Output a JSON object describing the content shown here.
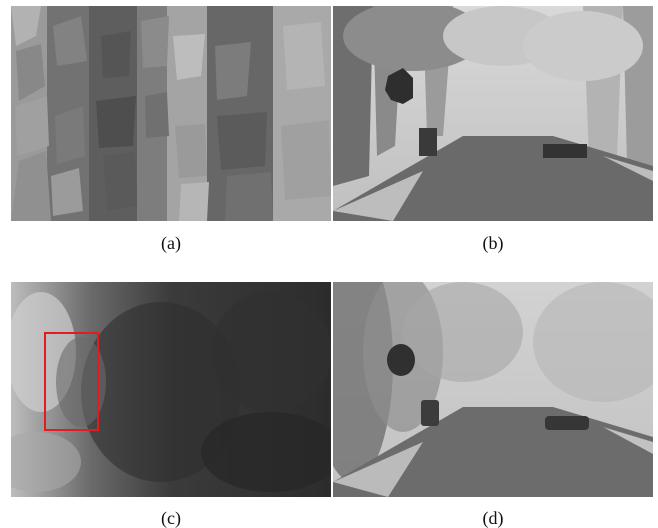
{
  "figure": {
    "captions": {
      "a": "(a)",
      "b": "(b)",
      "c": "(c)",
      "d": "(d)"
    },
    "highlight_color": "#e31b23"
  }
}
